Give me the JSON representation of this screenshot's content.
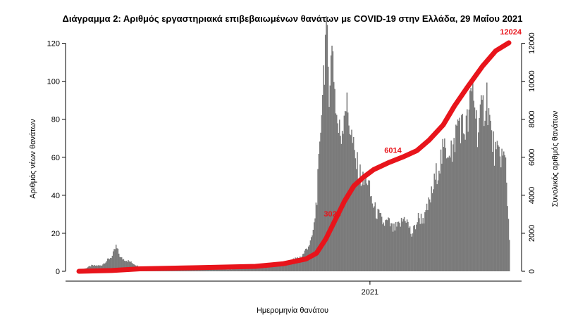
{
  "chart_data": {
    "type": "bar",
    "title": "Διάγραμμα 2: Αριθμός εργαστηριακά επιβεβαιωμένων θανάτων με COVID-19 στην Ελλάδα, 29 Μαΐου 2021",
    "xlabel": "Ημερομηνία θανάτου",
    "ylabel": "Αριθμός νέων θανάτων",
    "y2label": "Συνολικός αριθμός θανάτων",
    "x_tick_labels": [
      "2021"
    ],
    "x_tick_dates": [
      "2021-01-01"
    ],
    "date_range": [
      "2020-02-26",
      "2021-05-29"
    ],
    "ylim": [
      0,
      125
    ],
    "yticks": [
      0,
      20,
      40,
      60,
      80,
      100,
      120
    ],
    "y2lim": [
      0,
      12500
    ],
    "y2ticks": [
      0,
      2000,
      4000,
      6000,
      8000,
      10000,
      12000
    ],
    "grid": false,
    "legend": "none",
    "bar_color": "#7a7a7a",
    "line_color": "#e8141b",
    "series": [
      {
        "type": "bar",
        "axis": "left",
        "dates": [
          "2020-02-26",
          "2020-03-01",
          "2020-03-10",
          "2020-03-20",
          "2020-04-01",
          "2020-04-05",
          "2020-04-10",
          "2020-04-20",
          "2020-05-01",
          "2020-06-01",
          "2020-07-01",
          "2020-08-01",
          "2020-09-01",
          "2020-09-20",
          "2020-10-01",
          "2020-10-10",
          "2020-10-20",
          "2020-10-25",
          "2020-10-30",
          "2020-11-02",
          "2020-11-05",
          "2020-11-08",
          "2020-11-10",
          "2020-11-12",
          "2020-11-14",
          "2020-11-16",
          "2020-11-18",
          "2020-11-20",
          "2020-11-22",
          "2020-11-24",
          "2020-11-26",
          "2020-11-28",
          "2020-12-01",
          "2020-12-05",
          "2020-12-10",
          "2020-12-15",
          "2020-12-20",
          "2020-12-25",
          "2020-12-28",
          "2021-01-01",
          "2021-01-05",
          "2021-01-10",
          "2021-01-15",
          "2021-01-20",
          "2021-01-25",
          "2021-02-01",
          "2021-02-07",
          "2021-02-14",
          "2021-02-21",
          "2021-02-28",
          "2021-03-01",
          "2021-03-07",
          "2021-03-14",
          "2021-03-21",
          "2021-03-28",
          "2021-03-29",
          "2021-04-01",
          "2021-04-05",
          "2021-04-10",
          "2021-04-15",
          "2021-04-20",
          "2021-04-25",
          "2021-05-01",
          "2021-05-05",
          "2021-05-10",
          "2021-05-15",
          "2021-05-20",
          "2021-05-25",
          "2021-05-29"
        ],
        "values": [
          0,
          1,
          3,
          3,
          8,
          13,
          7,
          5,
          2,
          2,
          2,
          1,
          2,
          3,
          4,
          6,
          8,
          12,
          16,
          24,
          40,
          62,
          90,
          105,
          121,
          116,
          100,
          110,
          119,
          95,
          82,
          74,
          72,
          90,
          78,
          60,
          52,
          46,
          50,
          40,
          33,
          29,
          25,
          26,
          22,
          24,
          29,
          19,
          28,
          28,
          30,
          40,
          55,
          64,
          66,
          57,
          70,
          80,
          74,
          78,
          98,
          75,
          85,
          93,
          70,
          60,
          62,
          57,
          17
        ]
      },
      {
        "type": "line",
        "axis": "right",
        "name": "",
        "dates": [
          "2020-02-26",
          "2020-04-01",
          "2020-05-01",
          "2020-07-01",
          "2020-09-01",
          "2020-10-01",
          "2020-10-25",
          "2020-11-05",
          "2020-11-15",
          "2020-11-25",
          "2020-12-05",
          "2020-12-15",
          "2020-12-25",
          "2021-01-05",
          "2021-01-20",
          "2021-02-05",
          "2021-02-20",
          "2021-03-05",
          "2021-03-20",
          "2021-04-01",
          "2021-04-15",
          "2021-05-01",
          "2021-05-15",
          "2021-05-29"
        ],
        "values": [
          0,
          40,
          130,
          190,
          260,
          400,
          650,
          950,
          1700,
          2700,
          3700,
          4500,
          4950,
          5350,
          5700,
          6014,
          6350,
          6900,
          7700,
          8700,
          9700,
          10800,
          11600,
          12024
        ]
      }
    ],
    "annotations": [
      {
        "text": "3026",
        "date": "2020-12-01",
        "value2": 3026
      },
      {
        "text": "6014",
        "date": "2021-02-05",
        "value2": 6014
      },
      {
        "text": "12024",
        "date": "2021-05-29",
        "value2": 12024
      }
    ]
  }
}
